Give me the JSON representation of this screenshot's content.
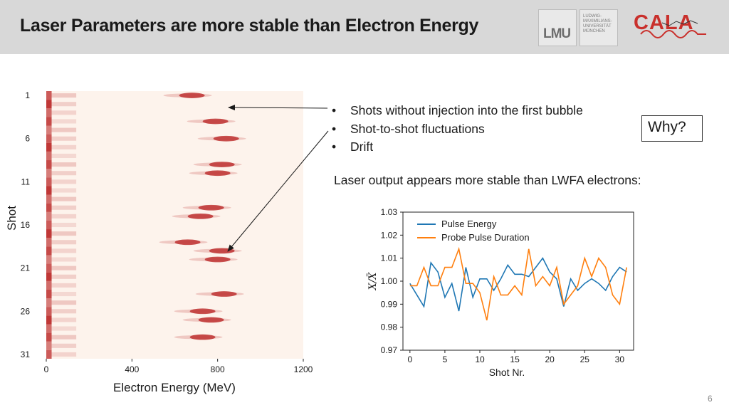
{
  "slide": {
    "title": "Laser Parameters are more stable than Electron Energy",
    "page_number": "6",
    "why_label": "Why?",
    "bullets": [
      "Shots without injection into the first bubble",
      "Shot-to-shot fluctuations",
      "Drift"
    ],
    "laser_text": "Laser output appears more stable than LWFA electrons:"
  },
  "logos": {
    "lmu_text": "LMU",
    "lmu_small": "LUDWIG-\nMAXIMILIANS-\nUNIVERSITÄT\nMÜNCHEN",
    "cala_text": "CALA"
  },
  "colors": {
    "header_bg": "#d8d8d8",
    "series1": "#1f77b4",
    "series2": "#ff7f0e",
    "heatmap": "#b71c1c"
  },
  "chart_data": [
    {
      "type": "heatmap",
      "xlabel": "Electron Energy (MeV)",
      "ylabel": "Shot",
      "xlim": [
        0,
        1200
      ],
      "ylim": [
        1,
        31
      ],
      "x_ticks": [
        0,
        400,
        800,
        1200
      ],
      "y_ticks": [
        1,
        6,
        11,
        16,
        21,
        26,
        31
      ],
      "peaks": [
        {
          "shot": 1,
          "energy": 680
        },
        {
          "shot": 4,
          "energy": 790
        },
        {
          "shot": 6,
          "energy": 840
        },
        {
          "shot": 9,
          "energy": 820
        },
        {
          "shot": 10,
          "energy": 800
        },
        {
          "shot": 14,
          "energy": 770
        },
        {
          "shot": 15,
          "energy": 720
        },
        {
          "shot": 18,
          "energy": 660
        },
        {
          "shot": 19,
          "energy": 820
        },
        {
          "shot": 20,
          "energy": 800
        },
        {
          "shot": 24,
          "energy": 830
        },
        {
          "shot": 26,
          "energy": 730
        },
        {
          "shot": 27,
          "energy": 770
        },
        {
          "shot": 29,
          "energy": 730
        }
      ]
    },
    {
      "type": "line",
      "xlabel": "Shot Nr.",
      "ylabel": "X/X̄",
      "xlim": [
        -1,
        32
      ],
      "ylim": [
        0.97,
        1.03
      ],
      "x_ticks": [
        0,
        5,
        10,
        15,
        20,
        25,
        30
      ],
      "y_ticks": [
        0.97,
        0.98,
        0.99,
        1.0,
        1.01,
        1.02,
        1.03
      ],
      "legend_position": "top-left",
      "x": [
        0,
        1,
        2,
        3,
        4,
        5,
        6,
        7,
        8,
        9,
        10,
        11,
        12,
        13,
        14,
        15,
        16,
        17,
        18,
        19,
        20,
        21,
        22,
        23,
        24,
        25,
        26,
        27,
        28,
        29,
        30,
        31
      ],
      "series": [
        {
          "name": "Pulse Energy",
          "color": "#1f77b4",
          "values": [
            0.999,
            0.994,
            0.989,
            1.008,
            1.004,
            0.993,
            0.999,
            0.987,
            1.006,
            0.993,
            1.001,
            1.001,
            0.996,
            1.001,
            1.007,
            1.003,
            1.003,
            1.002,
            1.006,
            1.01,
            1.004,
            1.001,
            0.989,
            1.001,
            0.996,
            0.999,
            1.001,
            0.999,
            0.996,
            1.002,
            1.006,
            1.004
          ]
        },
        {
          "name": "Probe Pulse Duration",
          "color": "#ff7f0e",
          "values": [
            0.998,
            0.998,
            1.006,
            0.998,
            0.998,
            1.006,
            1.006,
            1.014,
            0.999,
            0.999,
            0.995,
            0.983,
            1.002,
            0.994,
            0.994,
            0.998,
            0.994,
            1.014,
            0.998,
            1.002,
            0.998,
            1.006,
            0.99,
            0.994,
            0.998,
            1.01,
            1.002,
            1.01,
            1.006,
            0.994,
            0.99,
            1.006
          ]
        }
      ]
    }
  ]
}
